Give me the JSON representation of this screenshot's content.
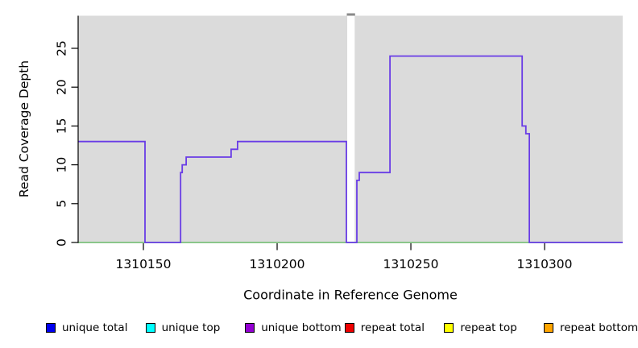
{
  "chart_data": {
    "type": "line",
    "subtype": "step-coverage",
    "title": "",
    "xlabel": "Coordinate in Reference Genome",
    "ylabel": "Read Coverage Depth",
    "xlim": [
      1310125.6,
      1310329.2
    ],
    "ylim": [
      0,
      29.2
    ],
    "x_ticks": [
      1310150,
      1310200,
      1310250,
      1310300
    ],
    "y_ticks": [
      0,
      5,
      10,
      15,
      20,
      25
    ],
    "grid": false,
    "legend_position": "bottom",
    "colors": {
      "background": "#DBDBDB",
      "coverage_line": "#693CE6",
      "zero_baseline": "#6FBF6F",
      "gap_fill": "#FFFFFF",
      "gap_top_mark": "#8A8A8A",
      "axis": "#000000"
    },
    "gap_region": {
      "x_start": 1310226.2,
      "x_end": 1310229.0
    },
    "series": [
      {
        "name": "coverage depth step line",
        "color": "#693CE6",
        "step_points": [
          [
            1310125.6,
            13
          ],
          [
            1310150.6,
            0
          ],
          [
            1310163.9,
            9
          ],
          [
            1310164.5,
            10
          ],
          [
            1310166.0,
            11
          ],
          [
            1310182.8,
            12
          ],
          [
            1310185.2,
            13
          ],
          [
            1310225.9,
            0
          ],
          [
            1310229.8,
            8
          ],
          [
            1310230.7,
            9
          ],
          [
            1310242.2,
            24
          ],
          [
            1310291.6,
            15
          ],
          [
            1310293.0,
            14
          ],
          [
            1310294.3,
            0
          ],
          [
            1310329.2,
            0
          ]
        ]
      },
      {
        "name": "zero baseline",
        "color": "#6FBF6F",
        "constant_y": 0
      }
    ]
  },
  "titles": {
    "y_axis": "Read Coverage Depth",
    "x_axis": "Coordinate in Reference Genome"
  },
  "legend": {
    "items": [
      {
        "label": "unique total",
        "color": "#0000EE"
      },
      {
        "label": "unique top",
        "color": "#00FFFF"
      },
      {
        "label": "unique bottom",
        "color": "#9400D3"
      },
      {
        "label": "repeat total",
        "color": "#EE0000"
      },
      {
        "label": "repeat top",
        "color": "#FFFF00"
      },
      {
        "label": "repeat bottom",
        "color": "#FFA500"
      }
    ]
  }
}
